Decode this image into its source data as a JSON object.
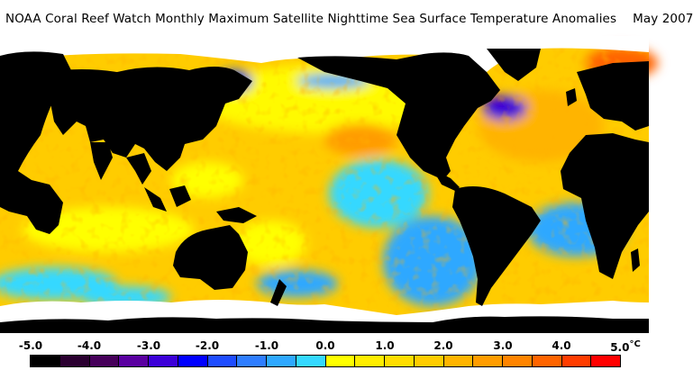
{
  "header": {
    "title": "NOAA Coral Reef Watch Monthly Maximum Satellite Nighttime Sea Surface Temperature Anomalies",
    "date": "May 2007"
  },
  "legend": {
    "unit": "°C",
    "ticks": [
      "-5.0",
      "-4.0",
      "-3.0",
      "-2.0",
      "-1.0",
      "0.0",
      "1.0",
      "2.0",
      "3.0",
      "4.0",
      "5.0"
    ],
    "colors": [
      "#000000",
      "#2a0030",
      "#46005a",
      "#5a00a0",
      "#3c00d8",
      "#0000ff",
      "#1e4cff",
      "#2e7dff",
      "#2ea8ff",
      "#34d8ff",
      "#ffff00",
      "#ffee00",
      "#ffdd00",
      "#ffcc00",
      "#ffb400",
      "#ff9c00",
      "#ff8400",
      "#ff6400",
      "#ff3c00",
      "#ff0000"
    ]
  },
  "map": {
    "land_color": "#000000",
    "ice_color": "#ffffff",
    "ocean_base_color": "#ffcc00"
  }
}
